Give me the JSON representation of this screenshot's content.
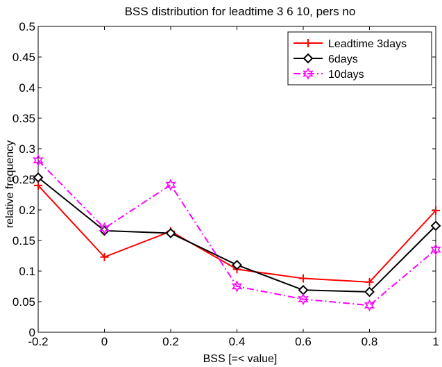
{
  "chart_data": {
    "type": "line",
    "title": "BSS distribution for leadtime 3 6 10, pers no",
    "xlabel": "BSS [=< value]",
    "ylabel": "relative frequency",
    "x": [
      -0.2,
      0,
      0.2,
      0.4,
      0.6,
      0.8,
      1
    ],
    "xlim": [
      -0.2,
      1
    ],
    "ylim": [
      0,
      0.5
    ],
    "xticks": [
      "-0.2",
      "0",
      "0.2",
      "0.4",
      "0.6",
      "0.8",
      "1"
    ],
    "yticks": [
      "0",
      "0.05",
      "0.1",
      "0.15",
      "0.2",
      "0.25",
      "0.3",
      "0.35",
      "0.4",
      "0.45",
      "0.5"
    ],
    "grid": false,
    "legend_position": "top-right",
    "series": [
      {
        "name": "Leadtime 3days",
        "color": "#ff0000",
        "marker": "plus",
        "line_style": "solid",
        "values": [
          0.24,
          0.123,
          0.165,
          0.103,
          0.088,
          0.082,
          0.199
        ]
      },
      {
        "name": "6days",
        "color": "#000000",
        "marker": "diamond",
        "line_style": "solid",
        "values": [
          0.253,
          0.166,
          0.162,
          0.11,
          0.069,
          0.066,
          0.174
        ]
      },
      {
        "name": "10days",
        "color": "#ff00ff",
        "marker": "hexagram",
        "line_style": "dash-dot",
        "values": [
          0.281,
          0.17,
          0.241,
          0.075,
          0.054,
          0.044,
          0.135
        ]
      }
    ]
  }
}
